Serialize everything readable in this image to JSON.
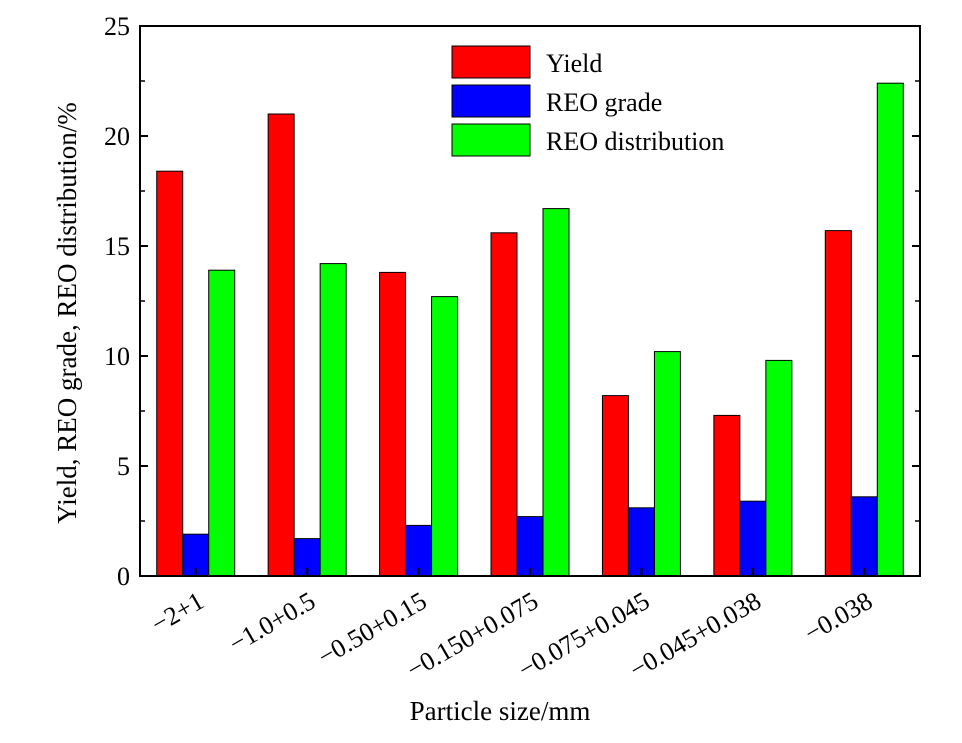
{
  "chart_data": {
    "type": "bar",
    "xlabel": "Particle size/mm",
    "ylabel": "Yield, REO grade, REO distribution/%",
    "ylim": [
      0,
      25
    ],
    "yticks": [
      0,
      5,
      10,
      15,
      20,
      25
    ],
    "grid": false,
    "legend_position": "top-center",
    "categories": [
      "−2+1",
      "−1.0+0.5",
      "−0.50+0.15",
      "−0.150+0.075",
      "−0.075+0.045",
      "−0.045+0.038",
      "−0.038"
    ],
    "series": [
      {
        "name": "Yield",
        "color": "#ff0000",
        "values": [
          18.4,
          21.0,
          13.8,
          15.6,
          8.2,
          7.3,
          15.7
        ]
      },
      {
        "name": "REO grade",
        "color": "#0000ff",
        "values": [
          1.9,
          1.7,
          2.3,
          2.7,
          3.1,
          3.4,
          3.6
        ]
      },
      {
        "name": "REO distribution",
        "color": "#00ff00",
        "values": [
          13.9,
          14.2,
          12.7,
          16.7,
          10.2,
          9.8,
          22.4
        ]
      }
    ]
  }
}
